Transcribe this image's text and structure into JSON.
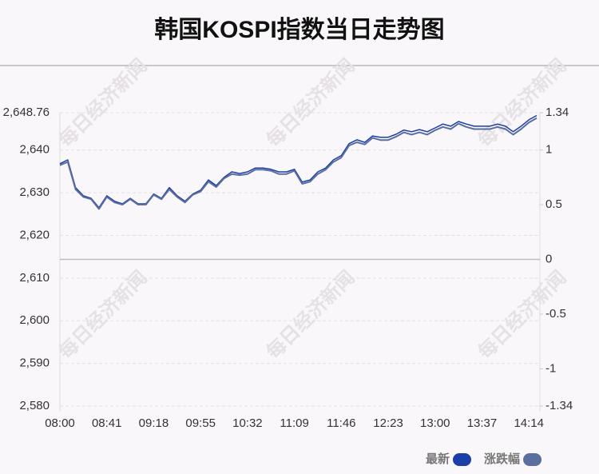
{
  "chart_data": {
    "type": "line",
    "title": "韩国KOSPI指数当日走势图",
    "watermark": "每日经济新闻",
    "categories": [
      "08:00",
      null,
      null,
      null,
      null,
      null,
      "08:41",
      null,
      null,
      null,
      null,
      null,
      "09:18",
      null,
      null,
      null,
      null,
      null,
      "09:55",
      null,
      null,
      null,
      null,
      null,
      "10:32",
      null,
      null,
      null,
      null,
      null,
      "11:09",
      null,
      null,
      null,
      null,
      null,
      "11:46",
      null,
      null,
      null,
      null,
      null,
      "12:23",
      null,
      null,
      null,
      null,
      null,
      "13:00",
      null,
      null,
      null,
      null,
      null,
      "13:37",
      null,
      null,
      null,
      null,
      null,
      "14:14",
      null
    ],
    "series": [
      {
        "name": "最新",
        "color": "#1b3fa6",
        "values": [
          2636.8,
          2637.7,
          2631.2,
          2629.3,
          2628.7,
          2626.5,
          2629.3,
          2628.0,
          2627.4,
          2628.7,
          2627.4,
          2627.4,
          2629.7,
          2628.7,
          2631.2,
          2629.3,
          2628.0,
          2629.7,
          2630.6,
          2633.0,
          2631.7,
          2633.6,
          2634.9,
          2634.5,
          2634.9,
          2635.8,
          2635.8,
          2635.5,
          2634.9,
          2634.9,
          2635.5,
          2632.5,
          2633.0,
          2634.9,
          2635.8,
          2637.7,
          2638.7,
          2641.5,
          2642.4,
          2641.8,
          2643.3,
          2643.0,
          2643.0,
          2643.7,
          2644.7,
          2644.3,
          2644.8,
          2644.3,
          2645.2,
          2646.1,
          2645.6,
          2646.7,
          2646.1,
          2645.6,
          2645.6,
          2645.6,
          2646.1,
          2645.6,
          2644.3,
          2645.6,
          2647.1,
          2648.1
        ]
      },
      {
        "name": "涨跌幅",
        "color": "#5b6f9f",
        "axis": "y2",
        "values": [
          0.86,
          0.89,
          0.64,
          0.57,
          0.55,
          0.46,
          0.57,
          0.52,
          0.5,
          0.55,
          0.5,
          0.5,
          0.59,
          0.55,
          0.64,
          0.57,
          0.52,
          0.59,
          0.62,
          0.71,
          0.66,
          0.74,
          0.78,
          0.77,
          0.78,
          0.82,
          0.82,
          0.81,
          0.78,
          0.78,
          0.81,
          0.69,
          0.71,
          0.78,
          0.82,
          0.89,
          0.93,
          1.04,
          1.07,
          1.05,
          1.11,
          1.09,
          1.09,
          1.12,
          1.16,
          1.14,
          1.16,
          1.14,
          1.18,
          1.21,
          1.19,
          1.24,
          1.21,
          1.19,
          1.19,
          1.19,
          1.21,
          1.19,
          1.14,
          1.19,
          1.25,
          1.29
        ]
      }
    ],
    "ylim": [
      2580,
      2648.76
    ],
    "yticks": [
      {
        "value": 2648.76,
        "label": "2,648.76"
      },
      {
        "value": 2640,
        "label": "2,640"
      },
      {
        "value": 2630,
        "label": "2,630"
      },
      {
        "value": 2620,
        "label": "2,620"
      },
      {
        "value": 2610,
        "label": "2,610"
      },
      {
        "value": 2600,
        "label": "2,600"
      },
      {
        "value": 2590,
        "label": "2,590"
      },
      {
        "value": 2580,
        "label": "2,580"
      }
    ],
    "y2lim": [
      -1.34,
      1.34
    ],
    "y2ticks": [
      1.34,
      1,
      0.5,
      0,
      -0.5,
      -1,
      -1.34
    ],
    "grid": true
  }
}
